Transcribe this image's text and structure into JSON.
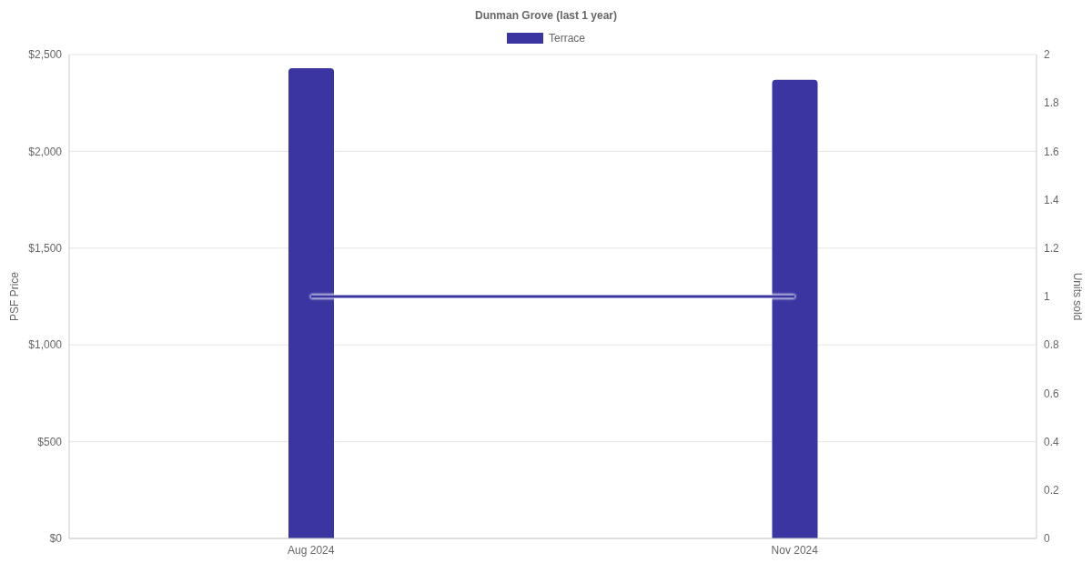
{
  "chart_data": {
    "type": "bar",
    "title": "Dunman Grove (last 1 year)",
    "categories": [
      "Aug 2024",
      "Nov 2024"
    ],
    "series": [
      {
        "name": "Terrace",
        "color": "#3a35a0",
        "values": [
          2430,
          2370
        ]
      },
      {
        "type": "line",
        "axis": "y2",
        "color": "#3a35a0",
        "values": [
          1,
          1
        ]
      }
    ],
    "ylabel": "PSF Price",
    "y2label": "Units sold",
    "ylim": [
      0,
      2500
    ],
    "yticks": [
      {
        "value": 0,
        "label": "$0"
      },
      {
        "value": 500,
        "label": "$500"
      },
      {
        "value": 1000,
        "label": "$1,000"
      },
      {
        "value": 1500,
        "label": "$1,500"
      },
      {
        "value": 2000,
        "label": "$2,000"
      },
      {
        "value": 2500,
        "label": "$2,500"
      }
    ],
    "y2lim": [
      0,
      2
    ],
    "y2ticks": [
      0,
      0.2,
      0.4,
      0.6,
      0.8,
      1,
      1.2,
      1.4,
      1.6,
      1.8,
      2
    ],
    "grid": "y",
    "legend": "top"
  }
}
